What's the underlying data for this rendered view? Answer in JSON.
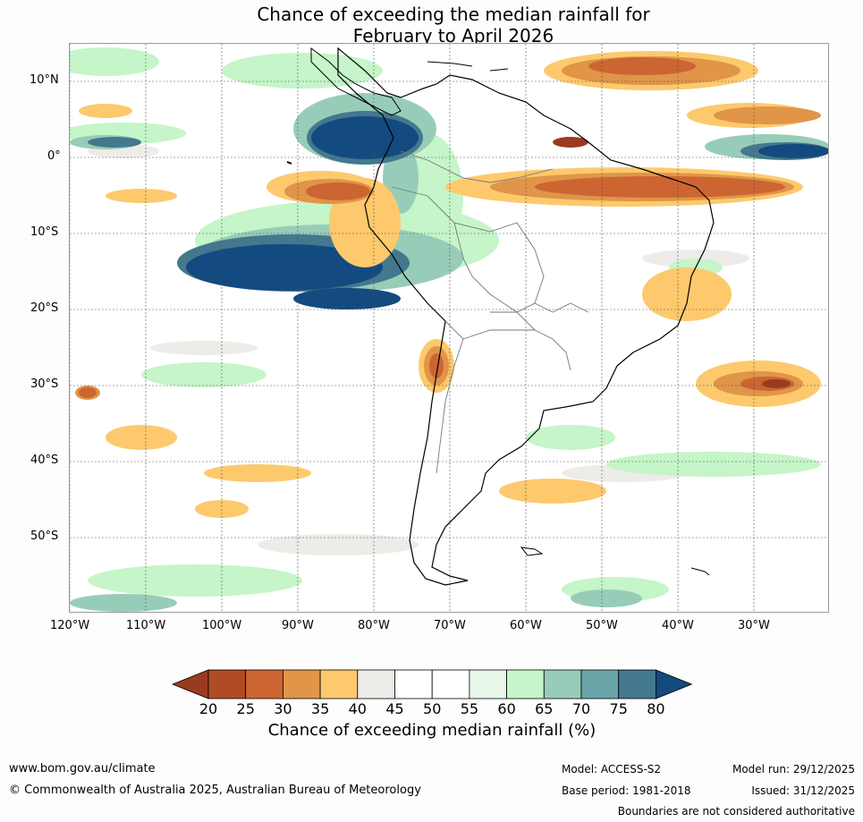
{
  "header": {
    "title_line1": "Chance of exceeding the median rainfall for",
    "title_line2": "February to April 2026"
  },
  "map": {
    "lat_labels": [
      "10°N",
      "0°",
      "10°S",
      "20°S",
      "30°S",
      "40°S",
      "50°S"
    ],
    "lon_labels": [
      "120°W",
      "110°W",
      "100°W",
      "90°W",
      "80°W",
      "70°W",
      "60°W",
      "50°W",
      "40°W",
      "30°W"
    ]
  },
  "legend": {
    "ticks": [
      "20",
      "25",
      "30",
      "35",
      "40",
      "45",
      "50",
      "55",
      "60",
      "65",
      "70",
      "75",
      "80"
    ],
    "colors": [
      "#9a3b1f",
      "#b04b26",
      "#cc6531",
      "#e09548",
      "#fdc96c",
      "#eeece8",
      "#ffffff",
      "#ffffff",
      "#e8f5e9",
      "#c5f5c8",
      "#97cdb8",
      "#6aa3a8",
      "#44788e",
      "#134a7f"
    ],
    "label": "Chance of exceeding median rainfall (%)"
  },
  "footer": {
    "website": "www.bom.gov.au/climate",
    "copyright": "© Commonwealth of Australia 2025, Australian Bureau of Meteorology",
    "model": "Model: ACCESS-S2",
    "base_period": "Base period: 1981-2018",
    "model_run": "Model run: 29/12/2025",
    "issued": "Issued: 31/12/2025",
    "disclaimer": "Boundaries are not considered authoritative"
  }
}
